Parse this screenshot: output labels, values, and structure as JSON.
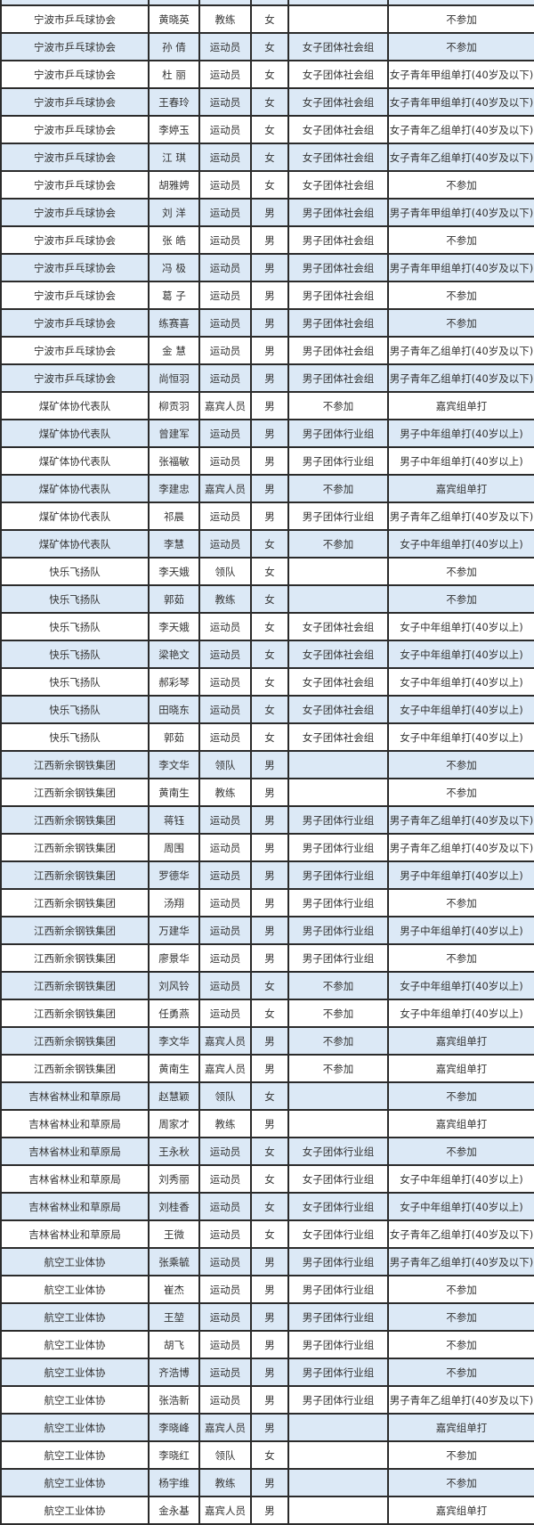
{
  "colors": {
    "row_alt": "#dce9f6",
    "row_plain": "#ffffff",
    "border": "#2b2b2b"
  },
  "rows": [
    [
      "宁波市乒乓球协会",
      "黄晓英",
      "教练",
      "女",
      "",
      "不参加"
    ],
    [
      "宁波市乒乓球协会",
      "孙 倩",
      "运动员",
      "女",
      "女子团体社会组",
      "不参加"
    ],
    [
      "宁波市乒乓球协会",
      "杜 丽",
      "运动员",
      "女",
      "女子团体社会组",
      "女子青年甲组单打(40岁及以下)"
    ],
    [
      "宁波市乒乓球协会",
      "王春玲",
      "运动员",
      "女",
      "女子团体社会组",
      "女子青年甲组单打(40岁及以下)"
    ],
    [
      "宁波市乒乓球协会",
      "李婷玉",
      "运动员",
      "女",
      "女子团体社会组",
      "女子青年乙组单打(40岁及以下)"
    ],
    [
      "宁波市乒乓球协会",
      "江 琪",
      "运动员",
      "女",
      "女子团体社会组",
      "女子青年乙组单打(40岁及以下)"
    ],
    [
      "宁波市乒乓球协会",
      "胡雅娉",
      "运动员",
      "女",
      "女子团体社会组",
      "不参加"
    ],
    [
      "宁波市乒乓球协会",
      "刘 洋",
      "运动员",
      "男",
      "男子团体社会组",
      "男子青年甲组单打(40岁及以下)"
    ],
    [
      "宁波市乒乓球协会",
      "张 皓",
      "运动员",
      "男",
      "男子团体社会组",
      "不参加"
    ],
    [
      "宁波市乒乓球协会",
      "冯 极",
      "运动员",
      "男",
      "男子团体社会组",
      "男子青年甲组单打(40岁及以下)"
    ],
    [
      "宁波市乒乓球协会",
      "葛 子",
      "运动员",
      "男",
      "男子团体社会组",
      "不参加"
    ],
    [
      "宁波市乒乓球协会",
      "练赛喜",
      "运动员",
      "男",
      "男子团体社会组",
      "不参加"
    ],
    [
      "宁波市乒乓球协会",
      "金 慧",
      "运动员",
      "男",
      "男子团体社会组",
      "男子青年乙组单打(40岁及以下)"
    ],
    [
      "宁波市乒乓球协会",
      "尚恒羽",
      "运动员",
      "男",
      "男子团体社会组",
      "男子青年乙组单打(40岁及以下)"
    ],
    [
      "煤矿体协代表队",
      "柳贡羽",
      "嘉宾人员",
      "男",
      "不参加",
      "嘉宾组单打"
    ],
    [
      "煤矿体协代表队",
      "曾建军",
      "运动员",
      "男",
      "男子团体行业组",
      "男子中年组单打(40岁以上)"
    ],
    [
      "煤矿体协代表队",
      "张福敏",
      "运动员",
      "男",
      "男子团体行业组",
      "男子中年组单打(40岁以上)"
    ],
    [
      "煤矿体协代表队",
      "李建忠",
      "嘉宾人员",
      "男",
      "不参加",
      "嘉宾组单打"
    ],
    [
      "煤矿体协代表队",
      "祁晨",
      "运动员",
      "男",
      "男子团体行业组",
      "男子青年乙组单打(40岁及以下)"
    ],
    [
      "煤矿体协代表队",
      "李慧",
      "运动员",
      "女",
      "不参加",
      "女子中年组单打(40岁以上)"
    ],
    [
      "快乐飞扬队",
      "李天娥",
      "领队",
      "女",
      "",
      "不参加"
    ],
    [
      "快乐飞扬队",
      "郭茹",
      "教练",
      "女",
      "",
      "不参加"
    ],
    [
      "快乐飞扬队",
      "李天娥",
      "运动员",
      "女",
      "女子团体社会组",
      "女子中年组单打(40岁以上)"
    ],
    [
      "快乐飞扬队",
      "梁艳文",
      "运动员",
      "女",
      "女子团体社会组",
      "女子中年组单打(40岁以上)"
    ],
    [
      "快乐飞扬队",
      "郝彩琴",
      "运动员",
      "女",
      "女子团体社会组",
      "女子中年组单打(40岁以上)"
    ],
    [
      "快乐飞扬队",
      "田晓东",
      "运动员",
      "女",
      "女子团体社会组",
      "女子中年组单打(40岁以上)"
    ],
    [
      "快乐飞扬队",
      "郭茹",
      "运动员",
      "女",
      "女子团体社会组",
      "女子中年组单打(40岁以上)"
    ],
    [
      "江西新余钢铁集团",
      "李文华",
      "领队",
      "男",
      "",
      "不参加"
    ],
    [
      "江西新余钢铁集团",
      "黄南生",
      "教练",
      "男",
      "",
      "不参加"
    ],
    [
      "江西新余钢铁集团",
      "蒋钰",
      "运动员",
      "男",
      "男子团体行业组",
      "男子青年乙组单打(40岁及以下)"
    ],
    [
      "江西新余钢铁集团",
      "周围",
      "运动员",
      "男",
      "男子团体行业组",
      "男子青年乙组单打(40岁及以下)"
    ],
    [
      "江西新余钢铁集团",
      "罗德华",
      "运动员",
      "男",
      "男子团体行业组",
      "男子中年组单打(40岁以上)"
    ],
    [
      "江西新余钢铁集团",
      "汤翔",
      "运动员",
      "男",
      "男子团体行业组",
      "不参加"
    ],
    [
      "江西新余钢铁集团",
      "万建华",
      "运动员",
      "男",
      "男子团体行业组",
      "男子中年组单打(40岁以上)"
    ],
    [
      "江西新余钢铁集团",
      "廖景华",
      "运动员",
      "男",
      "男子团体行业组",
      "不参加"
    ],
    [
      "江西新余钢铁集团",
      "刘风铃",
      "运动员",
      "女",
      "不参加",
      "女子中年组单打(40岁以上)"
    ],
    [
      "江西新余钢铁集团",
      "任勇燕",
      "运动员",
      "女",
      "不参加",
      "女子中年组单打(40岁以上)"
    ],
    [
      "江西新余钢铁集团",
      "李文华",
      "嘉宾人员",
      "男",
      "不参加",
      "嘉宾组单打"
    ],
    [
      "江西新余钢铁集团",
      "黄南生",
      "嘉宾人员",
      "男",
      "不参加",
      "嘉宾组单打"
    ],
    [
      "吉林省林业和草原局",
      "赵慧颖",
      "领队",
      "女",
      "",
      "不参加"
    ],
    [
      "吉林省林业和草原局",
      "周家才",
      "教练",
      "男",
      "",
      "嘉宾组单打"
    ],
    [
      "吉林省林业和草原局",
      "王永秋",
      "运动员",
      "女",
      "女子团体行业组",
      "不参加"
    ],
    [
      "吉林省林业和草原局",
      "刘秀丽",
      "运动员",
      "女",
      "女子团体行业组",
      "女子中年组单打(40岁以上)"
    ],
    [
      "吉林省林业和草原局",
      "刘桂香",
      "运动员",
      "女",
      "女子团体行业组",
      "女子中年组单打(40岁以上)"
    ],
    [
      "吉林省林业和草原局",
      "王微",
      "运动员",
      "女",
      "女子团体行业组",
      "女子青年乙组单打(40岁及以下)"
    ],
    [
      "航空工业体协",
      "张乘毓",
      "运动员",
      "男",
      "男子团体行业组",
      "男子青年乙组单打(40岁及以下)"
    ],
    [
      "航空工业体协",
      "崔杰",
      "运动员",
      "男",
      "男子团体行业组",
      "不参加"
    ],
    [
      "航空工业体协",
      "王堃",
      "运动员",
      "男",
      "男子团体行业组",
      "不参加"
    ],
    [
      "航空工业体协",
      "胡飞",
      "运动员",
      "男",
      "男子团体行业组",
      "不参加"
    ],
    [
      "航空工业体协",
      "齐浩博",
      "运动员",
      "男",
      "男子团体行业组",
      "不参加"
    ],
    [
      "航空工业体协",
      "张浩新",
      "运动员",
      "男",
      "男子团体行业组",
      "男子青年乙组单打(40岁及以下)"
    ],
    [
      "航空工业体协",
      "李晓峰",
      "嘉宾人员",
      "男",
      "",
      "嘉宾组单打"
    ],
    [
      "航空工业体协",
      "李晓红",
      "领队",
      "女",
      "",
      "不参加"
    ],
    [
      "航空工业体协",
      "杨宇维",
      "教练",
      "男",
      "",
      "不参加"
    ],
    [
      "航空工业体协",
      "金永基",
      "嘉宾人员",
      "男",
      "",
      "嘉宾组单打"
    ]
  ]
}
